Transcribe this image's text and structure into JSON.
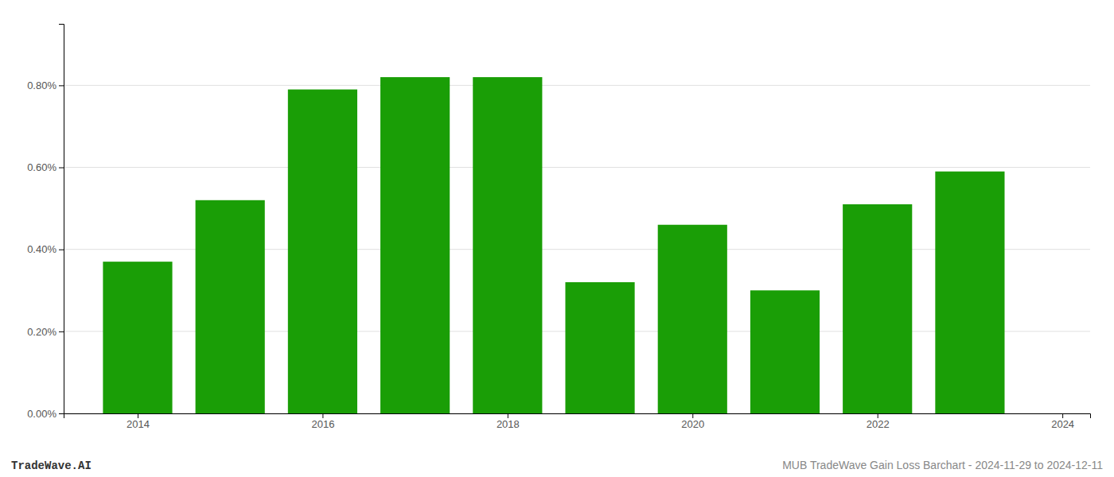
{
  "chart_data": {
    "type": "bar",
    "x": [
      2014,
      2015,
      2016,
      2017,
      2018,
      2019,
      2020,
      2021,
      2022,
      2023
    ],
    "values": [
      0.0037,
      0.0052,
      0.0079,
      0.0082,
      0.0082,
      0.0032,
      0.0046,
      0.003,
      0.0051,
      0.0059
    ],
    "color": "#1a9e06",
    "xlim": [
      2013.2,
      2024.3
    ],
    "xticks": [
      2014,
      2016,
      2018,
      2020,
      2022,
      2024
    ],
    "ylim": [
      0,
      0.0095
    ],
    "yticks": [
      {
        "value": 0.0,
        "label": "0.00%"
      },
      {
        "value": 0.002,
        "label": "0.20%"
      },
      {
        "value": 0.004,
        "label": "0.40%"
      },
      {
        "value": 0.006,
        "label": "0.60%"
      },
      {
        "value": 0.008,
        "label": "0.80%"
      }
    ],
    "grid": true,
    "annotations": [
      "TradeWave.AI",
      "MUB TradeWave Gain Loss Barchart - 2024-11-29 to 2024-12-11"
    ]
  }
}
